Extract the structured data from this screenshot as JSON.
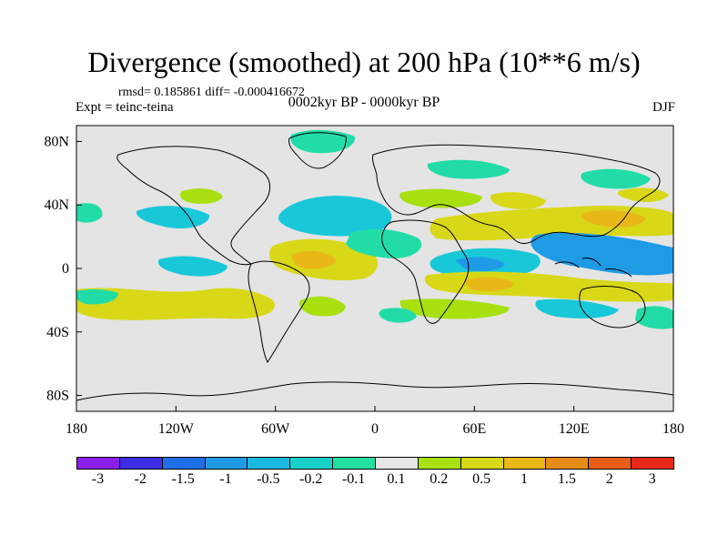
{
  "title": "Divergence (smoothed) at 200 hPa (10**6 m/s)",
  "stats": "rmsd= 0.185861 diff= -0.000416672",
  "subtitle": "0002kyr BP - 0000kyr BP",
  "left_label": "Expt = teinc-teina",
  "right_label": "DJF",
  "axes": {
    "x_ticks": [
      "180",
      "120W",
      "60W",
      "0",
      "60E",
      "120E",
      "180"
    ],
    "x_values": [
      -180,
      -120,
      -60,
      0,
      60,
      120,
      180
    ],
    "y_ticks": [
      "80N",
      "40N",
      "0",
      "40S",
      "80S"
    ],
    "y_values": [
      80,
      40,
      0,
      -40,
      -80
    ]
  },
  "colorbar": {
    "labels": [
      "-3",
      "-2",
      "-1.5",
      "-1",
      "-0.5",
      "-0.2",
      "-0.1",
      "0.1",
      "0.2",
      "0.5",
      "1",
      "1.5",
      "2",
      "3"
    ],
    "colors": [
      "#8c1fe8",
      "#3b2ee6",
      "#1f6fe8",
      "#1f9be6",
      "#18b8e0",
      "#18d0c8",
      "#22e0a0",
      "#e6e6e6",
      "#a8e010",
      "#d8d818",
      "#e8b818",
      "#e88c18",
      "#e85e18",
      "#e82818"
    ]
  },
  "colors": {
    "ocean": "#e4e4e4",
    "coast": "#000000",
    "cyan": "#18c8d8",
    "teal": "#22dca8",
    "green": "#a8e010",
    "yellow": "#d8d818",
    "orange": "#e8b818",
    "blue": "#1f9be6"
  }
}
